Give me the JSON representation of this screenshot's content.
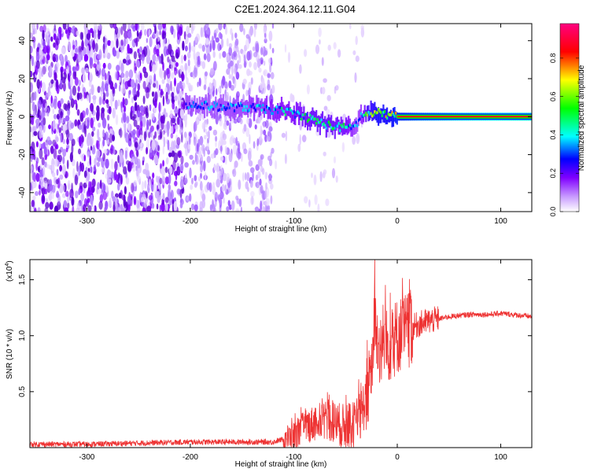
{
  "title": "C2E1.2024.364.12.11.G04",
  "chart_data": [
    {
      "type": "heatmap",
      "xlabel": "Height of straight line (km)",
      "ylabel": "Frequency (Hz)",
      "xlim": [
        -355,
        130
      ],
      "ylim": [
        -50,
        49
      ],
      "xticks": [
        -300,
        -200,
        -100,
        0,
        100
      ],
      "yticks": [
        -40,
        -20,
        0,
        20,
        40
      ],
      "colorbar": {
        "label": "Normalized spectral amplitude",
        "range": [
          0,
          0.98
        ],
        "ticks": [
          "0.0",
          "0.2",
          "0.4",
          "0.6",
          "0.8"
        ],
        "tick_values": [
          0.0,
          0.2,
          0.4,
          0.6,
          0.8
        ],
        "colors": [
          "#ffffff",
          "#c89bff",
          "#8000ff",
          "#0000ff",
          "#00ffff",
          "#00ff00",
          "#ffff00",
          "#ff0000",
          "#ff0080"
        ]
      },
      "ridge": {
        "x": [
          -205,
          -190,
          -170,
          -150,
          -130,
          -110,
          -95,
          -80,
          -65,
          -50,
          -40,
          -35,
          -30,
          -20,
          -10,
          0,
          20,
          60,
          100,
          130
        ],
        "frequency": [
          6,
          6,
          5,
          5,
          4,
          3,
          1,
          -2,
          -5,
          -6,
          -4,
          1,
          1,
          2,
          1,
          0,
          0,
          0,
          0,
          0
        ],
        "amplitude": [
          0.3,
          0.3,
          0.3,
          0.32,
          0.35,
          0.4,
          0.42,
          0.45,
          0.45,
          0.42,
          0.3,
          0.35,
          0.5,
          0.6,
          0.6,
          0.65,
          0.75,
          0.85,
          0.9,
          0.92
        ]
      },
      "noise_regions": [
        {
          "x": [
            -355,
            -205
          ],
          "density": "dense"
        },
        {
          "x": [
            -205,
            -120
          ],
          "density": "moderate"
        },
        {
          "x": [
            -120,
            -30
          ],
          "density": "sparse"
        }
      ]
    },
    {
      "type": "line",
      "xlabel": "Height of straight line (km)",
      "ylabel": "SNR (10 * v/v)",
      "multiplier": "(x10",
      "multiplier_exp": "4",
      "multiplier_close": ")",
      "xlim": [
        -355,
        130
      ],
      "ylim": [
        0,
        1.68
      ],
      "xticks": [
        -300,
        -200,
        -100,
        0,
        100
      ],
      "yticks": [
        "0.5",
        "1.0",
        "1.5"
      ],
      "ytick_values": [
        0.5,
        1.0,
        1.5
      ],
      "color": "#ee3333",
      "x": [
        -355,
        -300,
        -250,
        -200,
        -150,
        -120,
        -100,
        -90,
        -80,
        -70,
        -60,
        -50,
        -40,
        -35,
        -30,
        -25,
        -22,
        -18,
        -10,
        0,
        10,
        20,
        30,
        40,
        50,
        60,
        70,
        80,
        90,
        100,
        110,
        120,
        130
      ],
      "y": [
        0.03,
        0.03,
        0.04,
        0.05,
        0.05,
        0.05,
        0.1,
        0.18,
        0.22,
        0.26,
        0.22,
        0.18,
        0.2,
        0.3,
        0.45,
        0.65,
        1.1,
        0.9,
        0.9,
        1.0,
        1.05,
        1.1,
        1.13,
        1.15,
        1.17,
        1.18,
        1.19,
        1.19,
        1.19,
        1.2,
        1.19,
        1.18,
        1.17
      ],
      "spike": {
        "x": -21.7,
        "y": 1.68
      }
    }
  ]
}
